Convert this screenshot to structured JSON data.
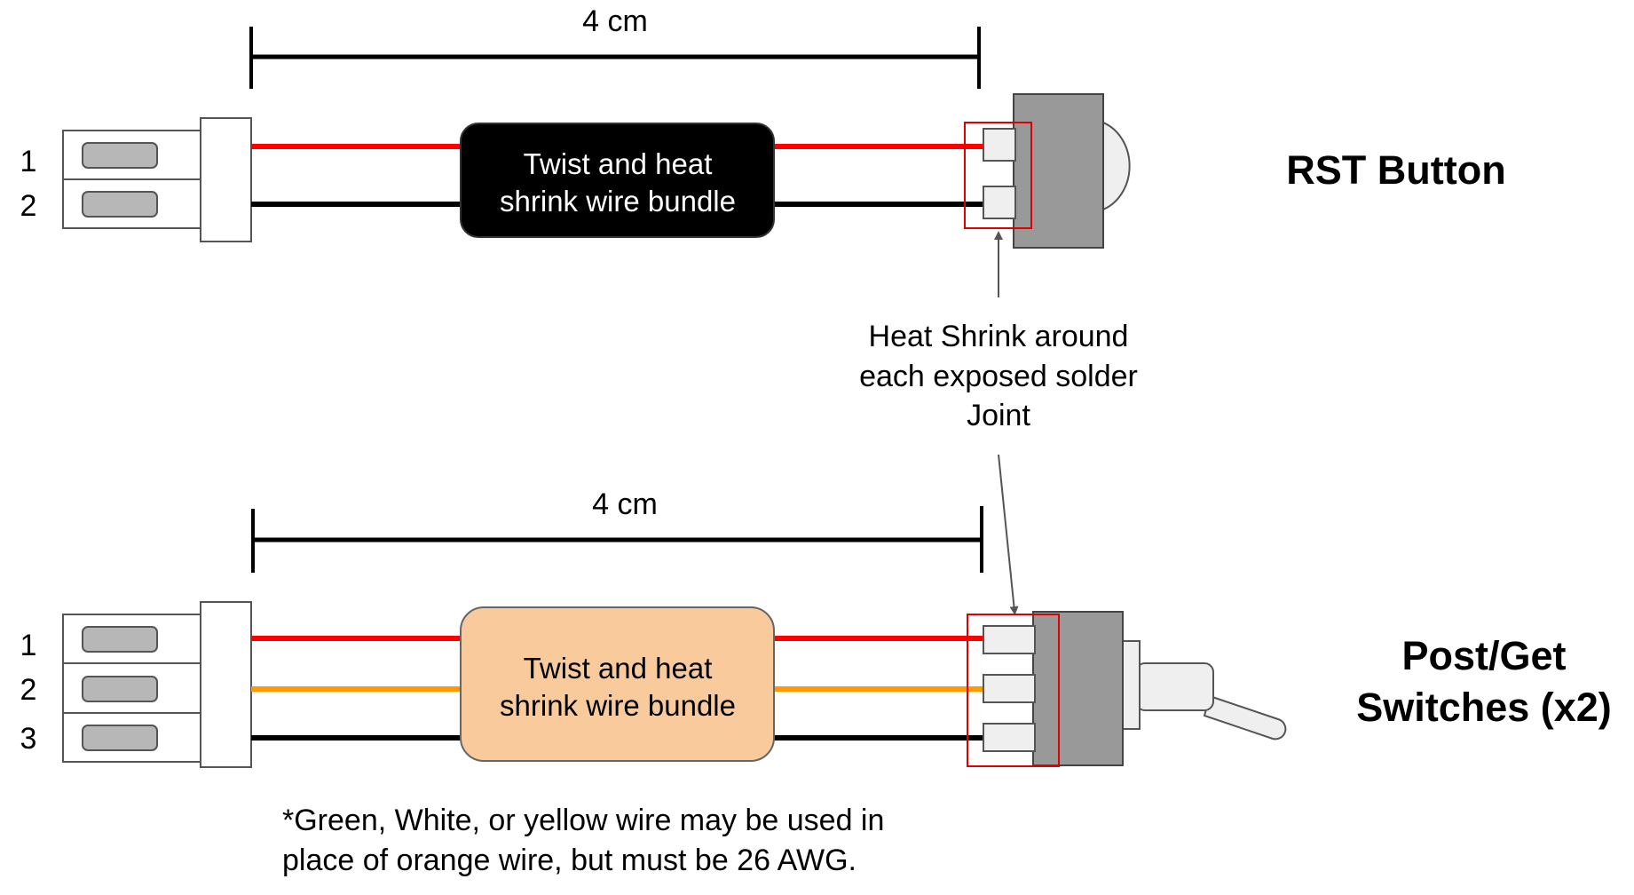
{
  "top_diagram": {
    "dimension_label": "4 cm",
    "pin_numbers": [
      "1",
      "2"
    ],
    "bundle_label_lines": [
      "Twist and heat",
      "shrink wire bundle"
    ],
    "title": "RST Button",
    "wire_colors": [
      "#ff0000",
      "#000000"
    ],
    "bundle_fill": "#000000",
    "bundle_text_color": "#ffffff"
  },
  "bottom_diagram": {
    "dimension_label": "4 cm",
    "pin_numbers": [
      "1",
      "2",
      "3"
    ],
    "bundle_label_lines": [
      "Twist and heat",
      "shrink wire bundle"
    ],
    "title_lines": [
      "Post/Get",
      "Switches (x2)"
    ],
    "wire_colors": [
      "#ff0000",
      "#ff9900",
      "#000000"
    ],
    "bundle_fill": "#f9cb9c",
    "bundle_text_color": "#000000"
  },
  "callout": {
    "lines": [
      "Heat Shrink around",
      "each exposed solder",
      "Joint"
    ]
  },
  "footnote": {
    "lines": [
      "*Green, White, or yellow wire may be used in",
      "place of orange wire, but must be 26 AWG."
    ]
  },
  "colors": {
    "highlight_box": "#e00000",
    "component_gray": "#999999",
    "pin_gray": "#b7b7b7",
    "light_gray": "#efefef"
  }
}
